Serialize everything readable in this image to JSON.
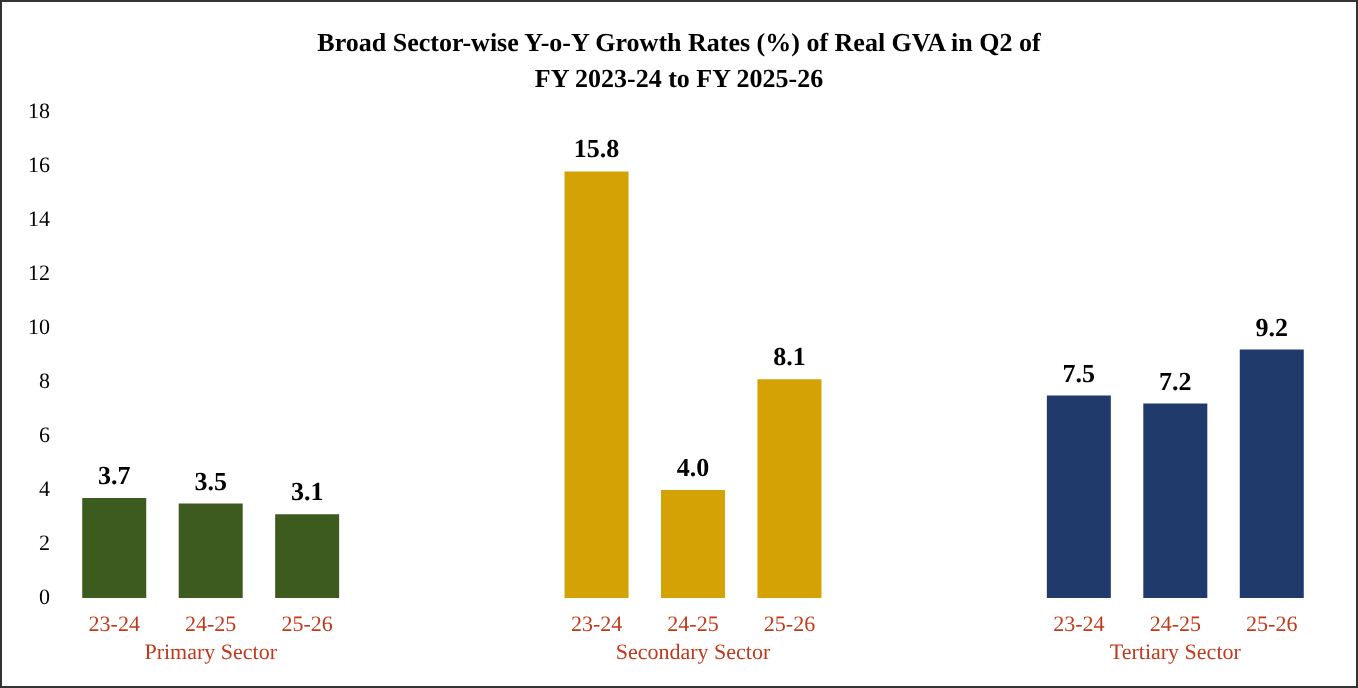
{
  "chart_data": {
    "type": "bar",
    "title": "Broad Sector-wise Y-o-Y Growth Rates (%) of Real GVA in Q2 of\nFY 2023-24 to FY 2025-26",
    "categories": [
      "23-24",
      "24-25",
      "25-26",
      null,
      null,
      "23-24",
      "24-25",
      "25-26",
      null,
      null,
      "23-24",
      "24-25",
      "25-26"
    ],
    "values": [
      3.7,
      3.5,
      3.1,
      null,
      null,
      15.8,
      4.0,
      8.1,
      null,
      null,
      7.5,
      7.2,
      9.2
    ],
    "value_labels": [
      "3.7",
      "3.5",
      "3.1",
      null,
      null,
      "15.8",
      "4.0",
      "8.1",
      null,
      null,
      "7.5",
      "7.2",
      "9.2"
    ],
    "colors": [
      "#3d5b1f",
      "#3d5b1f",
      "#3d5b1f",
      null,
      null,
      "#d4a204",
      "#d4a204",
      "#d4a204",
      null,
      null,
      "#203a6b",
      "#203a6b",
      "#203a6b"
    ],
    "annotations": [
      "Primary Sector",
      "Secondary Sector",
      "Tertiary Sector"
    ],
    "ylim": [
      0,
      18
    ],
    "yticks": [
      0,
      2,
      4,
      6,
      8,
      10,
      12,
      14,
      16,
      18
    ],
    "grid": false
  }
}
